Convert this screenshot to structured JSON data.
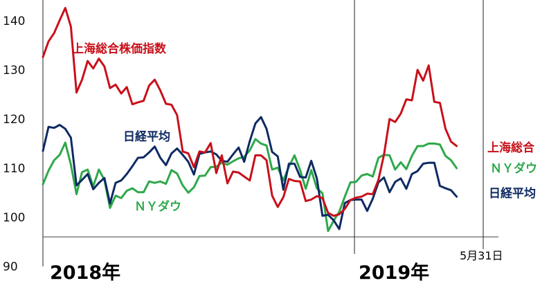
{
  "chart_data": {
    "type": "line",
    "ylim": [
      90,
      145
    ],
    "yticks": [
      "90",
      "100",
      "110",
      "120",
      "130",
      "140"
    ],
    "year_labels": [
      "2018年",
      "2019年"
    ],
    "end_date_label": "5月31日",
    "x_count": 80,
    "year_divider_index": 52,
    "grid": false,
    "colors": {
      "shanghai": "#c8101a",
      "nikkei": "#0e2a63",
      "nydow": "#2ea84a"
    },
    "series": [
      {
        "key": "shanghai",
        "name": "上海総合株価指数",
        "end_label": "上海総合",
        "values": [
          132.6,
          135.8,
          137.5,
          140.1,
          142.6,
          138.8,
          125.4,
          128.0,
          131.8,
          130.3,
          132.3,
          130.7,
          126.3,
          127.0,
          125.2,
          126.5,
          123.0,
          123.4,
          123.7,
          126.8,
          128.0,
          125.8,
          123.1,
          122.9,
          120.8,
          113.4,
          113.0,
          110.2,
          113.4,
          113.2,
          115.1,
          109.0,
          112.6,
          106.9,
          109.3,
          109.1,
          108.3,
          107.5,
          112.6,
          112.6,
          111.6,
          104.4,
          102.1,
          104.1,
          107.8,
          107.4,
          107.3,
          103.3,
          103.6,
          104.3,
          103.9,
          100.9,
          100.3,
          100.6,
          101.7,
          103.5,
          104.0,
          104.2,
          104.8,
          104.7,
          107.6,
          112.7,
          120.0,
          119.4,
          121.1,
          124.0,
          123.8,
          130.0,
          127.8,
          130.9,
          123.5,
          123.3,
          118.0,
          115.4,
          114.5
        ]
      },
      {
        "key": "nikkei",
        "name": "日経平均",
        "end_label": "日経平均",
        "values": [
          113.5,
          118.4,
          118.2,
          118.8,
          118.0,
          116.2,
          106.5,
          107.6,
          108.8,
          105.7,
          107.0,
          108.0,
          102.8,
          107.0,
          107.5,
          108.8,
          110.4,
          112.1,
          112.2,
          113.2,
          114.4,
          112.1,
          110.6,
          113.0,
          114.0,
          112.7,
          111.3,
          108.7,
          112.9,
          113.2,
          113.4,
          112.8,
          111.5,
          111.3,
          112.8,
          114.2,
          111.3,
          115.5,
          119.1,
          120.4,
          118.0,
          113.3,
          112.4,
          105.6,
          110.9,
          110.9,
          108.2,
          108.1,
          111.5,
          107.9,
          100.3,
          100.5,
          99.4,
          97.6,
          102.9,
          103.5,
          103.6,
          103.6,
          101.3,
          103.8,
          107.1,
          108.1,
          105.1,
          107.2,
          107.9,
          105.8,
          108.8,
          109.4,
          110.9,
          111.1,
          111.1,
          106.4,
          105.9,
          105.5,
          104.2
        ]
      },
      {
        "key": "nydow",
        "name": "ＮＹダウ",
        "end_label": "ＮＹダウ",
        "values": [
          106.7,
          109.5,
          111.6,
          112.7,
          115.2,
          110.7,
          104.7,
          109.2,
          109.7,
          106.3,
          109.7,
          107.6,
          101.9,
          104.4,
          103.9,
          105.4,
          105.9,
          105.1,
          105.1,
          107.3,
          107.0,
          107.3,
          106.8,
          109.6,
          108.9,
          106.5,
          105.0,
          106.1,
          108.4,
          108.5,
          110.2,
          110.3,
          111.1,
          110.7,
          111.4,
          112.0,
          112.3,
          113.6,
          115.9,
          115.0,
          114.6,
          109.7,
          110.1,
          107.5,
          110.3,
          112.6,
          109.6,
          105.8,
          109.6,
          105.9,
          104.9,
          97.2,
          99.3,
          101.1,
          104.2,
          107.1,
          107.2,
          108.5,
          108.8,
          108.3,
          112.1,
          112.7,
          112.6,
          109.7,
          111.2,
          109.8,
          112.5,
          114.5,
          114.5,
          115.0,
          115.0,
          114.8,
          112.5,
          111.6,
          110.0
        ]
      }
    ],
    "in_plot_labels": [
      {
        "series": "shanghai",
        "text": "上海総合株価指数"
      },
      {
        "series": "nikkei",
        "text": "日経平均"
      },
      {
        "series": "nydow",
        "text": "ＮＹダウ"
      }
    ]
  }
}
